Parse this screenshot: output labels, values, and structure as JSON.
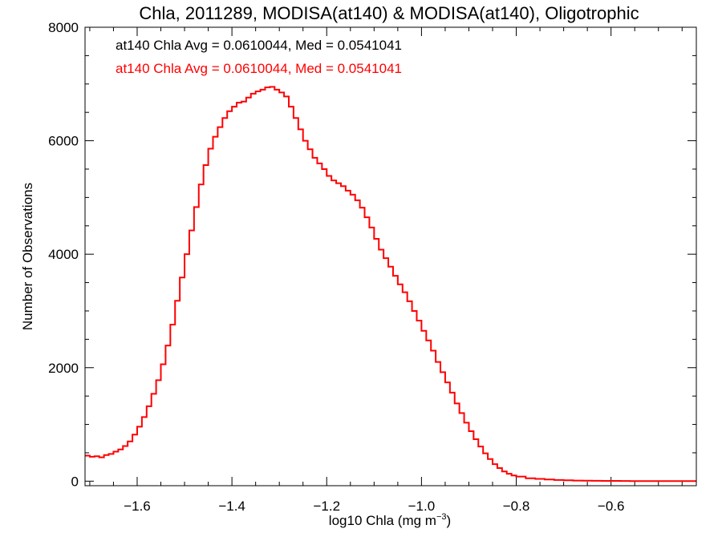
{
  "chart_data": {
    "type": "histogram",
    "title": "Chla, 2011289, MODISA(at140) & MODISA(at140), Oligotrophic",
    "xlabel": "log10 Chla (mg m",
    "xlabel_sup": "−3",
    "xlabel_close": ")",
    "ylabel": "Number of Observations",
    "xlim": [
      -1.71,
      -0.42
    ],
    "ylim": [
      -80,
      8000
    ],
    "xticks": [
      -1.6,
      -1.4,
      -1.2,
      -1.0,
      -0.8,
      -0.6
    ],
    "xtick_labels": [
      "−1.6",
      "−1.4",
      "−1.2",
      "−1.0",
      "−0.8",
      "−0.6"
    ],
    "yticks": [
      0,
      2000,
      4000,
      6000,
      8000
    ],
    "ytick_labels": [
      "0",
      "2000",
      "4000",
      "6000",
      "8000"
    ],
    "grid": false,
    "annotations": [
      {
        "text": "at140 Chla Avg = 0.0610044, Med = 0.0541041",
        "color": "#000000"
      },
      {
        "text": "at140 Chla Avg = 0.0610044, Med = 0.0541041",
        "color": "#ff0000"
      }
    ],
    "series": [
      {
        "color": "#ff0000",
        "x": [
          -1.71,
          -1.7,
          -1.69,
          -1.68,
          -1.67,
          -1.66,
          -1.65,
          -1.64,
          -1.63,
          -1.62,
          -1.61,
          -1.6,
          -1.59,
          -1.58,
          -1.57,
          -1.56,
          -1.55,
          -1.54,
          -1.53,
          -1.52,
          -1.51,
          -1.5,
          -1.49,
          -1.48,
          -1.47,
          -1.46,
          -1.45,
          -1.44,
          -1.43,
          -1.42,
          -1.41,
          -1.4,
          -1.39,
          -1.38,
          -1.37,
          -1.36,
          -1.35,
          -1.34,
          -1.33,
          -1.32,
          -1.31,
          -1.3,
          -1.29,
          -1.28,
          -1.27,
          -1.26,
          -1.25,
          -1.24,
          -1.23,
          -1.22,
          -1.21,
          -1.2,
          -1.19,
          -1.18,
          -1.17,
          -1.16,
          -1.15,
          -1.14,
          -1.13,
          -1.12,
          -1.11,
          -1.1,
          -1.09,
          -1.08,
          -1.07,
          -1.06,
          -1.05,
          -1.04,
          -1.03,
          -1.02,
          -1.01,
          -1.0,
          -0.99,
          -0.98,
          -0.97,
          -0.96,
          -0.95,
          -0.94,
          -0.93,
          -0.92,
          -0.91,
          -0.9,
          -0.89,
          -0.88,
          -0.87,
          -0.86,
          -0.85,
          -0.84,
          -0.83,
          -0.82,
          -0.81,
          -0.8,
          -0.78,
          -0.76,
          -0.74,
          -0.72,
          -0.7,
          -0.68,
          -0.66,
          -0.64,
          -0.62,
          -0.6,
          -0.58,
          -0.56,
          -0.54,
          -0.52,
          -0.5,
          -0.48,
          -0.46,
          -0.44,
          -0.42
        ],
        "y": [
          450,
          430,
          440,
          420,
          460,
          480,
          520,
          560,
          620,
          700,
          820,
          960,
          1130,
          1320,
          1540,
          1780,
          2060,
          2390,
          2760,
          3180,
          3590,
          4000,
          4420,
          4830,
          5230,
          5570,
          5860,
          6070,
          6240,
          6400,
          6520,
          6600,
          6670,
          6690,
          6760,
          6830,
          6870,
          6900,
          6940,
          6950,
          6900,
          6850,
          6780,
          6600,
          6400,
          6200,
          6000,
          5850,
          5700,
          5600,
          5500,
          5380,
          5300,
          5250,
          5200,
          5120,
          5050,
          4950,
          4820,
          4650,
          4470,
          4270,
          4080,
          3930,
          3780,
          3620,
          3470,
          3330,
          3170,
          3000,
          2830,
          2650,
          2480,
          2300,
          2100,
          1920,
          1740,
          1560,
          1370,
          1200,
          1030,
          880,
          740,
          610,
          490,
          390,
          300,
          230,
          170,
          130,
          100,
          80,
          50,
          40,
          30,
          20,
          15,
          10,
          8,
          6,
          5,
          4,
          3,
          2,
          1,
          1,
          1,
          1,
          1,
          1,
          1
        ]
      }
    ]
  }
}
